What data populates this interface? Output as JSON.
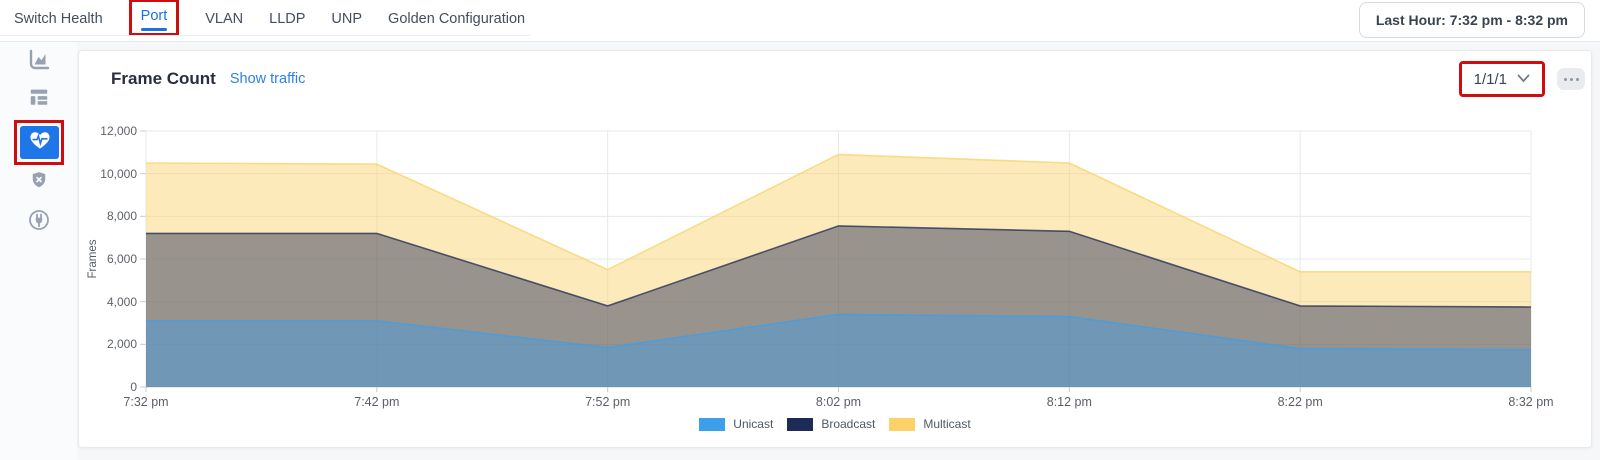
{
  "annotation_color": "#cf0d0d",
  "header": {
    "tabs": [
      {
        "label": "Switch Health",
        "active": false,
        "annotated": false
      },
      {
        "label": "Port",
        "active": true,
        "annotated": true
      },
      {
        "label": "VLAN",
        "active": false,
        "annotated": false
      },
      {
        "label": "LLDP",
        "active": false,
        "annotated": false
      },
      {
        "label": "UNP",
        "active": false,
        "annotated": false
      },
      {
        "label": "Golden Configuration",
        "active": false,
        "annotated": false
      }
    ],
    "time_range_label": "Last Hour: 7:32 pm - 8:32 pm"
  },
  "sidebar": {
    "icons": [
      "performance-chart-icon",
      "list-report-icon",
      "health-heart-icon",
      "shield-x-icon",
      "diagnostics-plug-icon"
    ],
    "selected_icon": "health-heart-icon",
    "selected_tile_color": "#1f76e8"
  },
  "card": {
    "title": "Frame Count",
    "show_traffic_link": "Show traffic",
    "port_selector_value": "1/1/1"
  },
  "chart_data": {
    "type": "area",
    "stacked": true,
    "title": "Frame Count",
    "ylabel": "Frames",
    "ylim": [
      0,
      12000
    ],
    "grid": true,
    "legend_position": "bottom",
    "fill_opacity": 0.45,
    "y_ticks": [
      {
        "value": 0,
        "label": "0"
      },
      {
        "value": 2000,
        "label": "2,000"
      },
      {
        "value": 4000,
        "label": "4,000"
      },
      {
        "value": 6000,
        "label": "6,000"
      },
      {
        "value": 8000,
        "label": "8,000"
      },
      {
        "value": 10000,
        "label": "10,000"
      },
      {
        "value": 12000,
        "label": "12,000"
      }
    ],
    "x": [
      "7:32 pm",
      "7:42 pm",
      "7:52 pm",
      "8:02 pm",
      "8:12 pm",
      "8:22 pm",
      "8:32 pm"
    ],
    "series": [
      {
        "name": "Unicast",
        "color": "#3d9ee9",
        "values": [
          3100,
          3100,
          1850,
          3400,
          3300,
          1800,
          1750
        ]
      },
      {
        "name": "Broadcast",
        "color": "#1e2b57",
        "values": [
          4100,
          4100,
          1950,
          4150,
          4000,
          2000,
          2000
        ]
      },
      {
        "name": "Multicast",
        "color": "#fbd168",
        "values": [
          3300,
          3250,
          1700,
          3350,
          3200,
          1600,
          1650
        ]
      }
    ],
    "stacked_totals": [
      10500,
      10450,
      5500,
      10900,
      10500,
      5400,
      5400
    ]
  }
}
